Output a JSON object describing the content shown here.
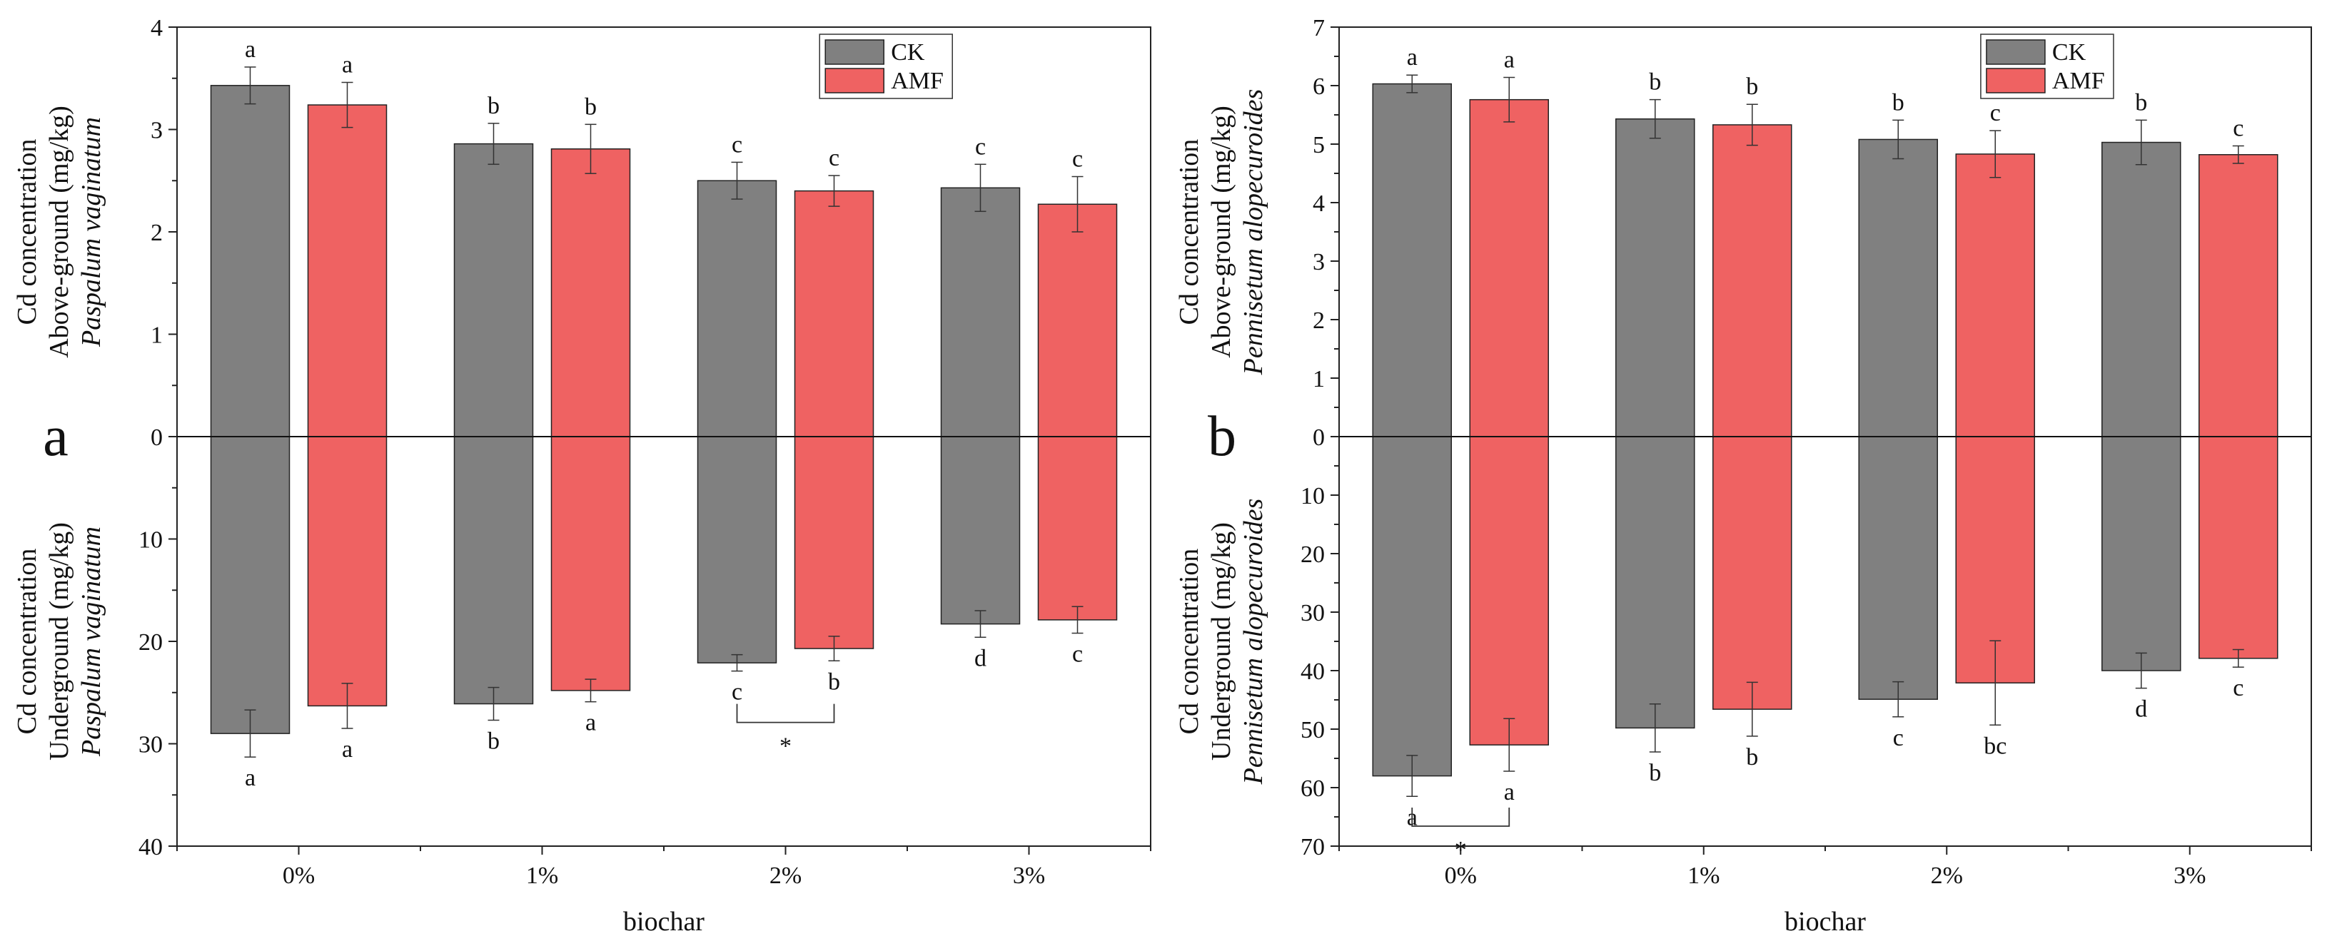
{
  "colors": {
    "CK": "#808080",
    "AMF": "#ef6262",
    "axis": "#222222"
  },
  "chart_data": [
    {
      "type": "bar",
      "panel": "a",
      "xlabel": "biochar",
      "categories": [
        "0%",
        "1%",
        "2%",
        "3%"
      ],
      "ylabel_top": [
        "Cd concentration",
        "Above-ground (mg/kg)",
        "Paspalum vaginatum"
      ],
      "ylabel_bottom": [
        "Cd concentration",
        "Underground (mg/kg)",
        "Paspalum vaginatum"
      ],
      "top_ylim": [
        0,
        4
      ],
      "top_ticks": [
        "0",
        "1",
        "2",
        "3",
        "4"
      ],
      "bottom_ylim": [
        0,
        40
      ],
      "bottom_ticks": [
        "10",
        "20",
        "30",
        "40"
      ],
      "legend": {
        "position": "top-center",
        "entries": [
          "CK",
          "AMF"
        ]
      },
      "series": [
        {
          "name": "CK",
          "top_values": [
            3.43,
            2.86,
            2.5,
            2.43
          ],
          "top_err": [
            0.18,
            0.2,
            0.18,
            0.23
          ],
          "top_letters": [
            "a",
            "b",
            "c",
            "c"
          ],
          "bottom_values": [
            29.0,
            26.1,
            22.1,
            18.3
          ],
          "bottom_err": [
            2.3,
            1.6,
            0.8,
            1.3
          ],
          "bottom_letters": [
            "a",
            "b",
            "c",
            "d"
          ]
        },
        {
          "name": "AMF",
          "top_values": [
            3.24,
            2.81,
            2.4,
            2.27
          ],
          "top_err": [
            0.22,
            0.24,
            0.15,
            0.27
          ],
          "top_letters": [
            "a",
            "b",
            "c",
            "c"
          ],
          "bottom_values": [
            26.3,
            24.8,
            20.7,
            17.9
          ],
          "bottom_err": [
            2.2,
            1.1,
            1.2,
            1.3
          ],
          "bottom_letters": [
            "a",
            "a",
            "b",
            "c"
          ]
        }
      ],
      "significance": [
        {
          "category_index": 2,
          "marker": "*"
        }
      ]
    },
    {
      "type": "bar",
      "panel": "b",
      "xlabel": "biochar",
      "categories": [
        "0%",
        "1%",
        "2%",
        "3%"
      ],
      "ylabel_top": [
        "Cd concentration",
        "Above-ground (mg/kg)",
        "Pennisetum alopecuroides"
      ],
      "ylabel_bottom": [
        "Cd concentration",
        "Underground (mg/kg)",
        "Pennisetum alopecuroides"
      ],
      "top_ylim": [
        0,
        7
      ],
      "top_ticks": [
        "0",
        "1",
        "2",
        "3",
        "4",
        "5",
        "6",
        "7"
      ],
      "bottom_ylim": [
        0,
        70
      ],
      "bottom_ticks": [
        "10",
        "20",
        "30",
        "40",
        "50",
        "60",
        "70"
      ],
      "legend": {
        "position": "top-center",
        "entries": [
          "CK",
          "AMF"
        ]
      },
      "series": [
        {
          "name": "CK",
          "top_values": [
            6.03,
            5.43,
            5.08,
            5.03
          ],
          "top_err": [
            0.15,
            0.33,
            0.33,
            0.38
          ],
          "top_letters": [
            "a",
            "b",
            "b",
            "b"
          ],
          "bottom_values": [
            58.0,
            49.8,
            44.9,
            40.0
          ],
          "bottom_err": [
            3.5,
            4.1,
            3.0,
            3.0
          ],
          "bottom_letters": [
            "a",
            "b",
            "c",
            "d"
          ]
        },
        {
          "name": "AMF",
          "top_values": [
            5.76,
            5.33,
            4.83,
            4.82
          ],
          "top_err": [
            0.38,
            0.35,
            0.4,
            0.15
          ],
          "top_letters": [
            "a",
            "b",
            "c",
            "c"
          ],
          "bottom_values": [
            52.7,
            46.6,
            42.1,
            37.9
          ],
          "bottom_err": [
            4.5,
            4.6,
            7.2,
            1.5
          ],
          "bottom_letters": [
            "a",
            "b",
            "bc",
            "c"
          ]
        }
      ],
      "significance": [
        {
          "category_index": 0,
          "marker": "*"
        }
      ]
    }
  ]
}
